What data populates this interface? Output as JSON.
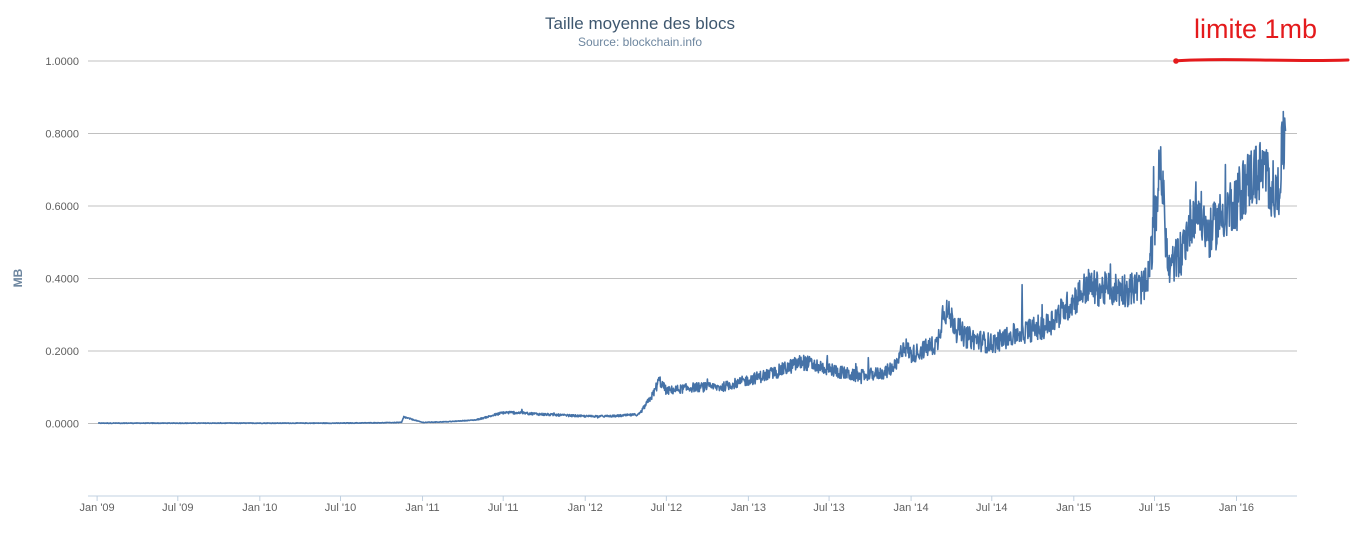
{
  "chart_data": {
    "type": "line",
    "title": "Taille moyenne des blocs",
    "subtitle": "Source: blockchain.info",
    "xlabel": "",
    "ylabel": "MB",
    "ylim": [
      -0.2,
      1.0
    ],
    "y_ticks": [
      "0.0000",
      "0.2000",
      "0.4000",
      "0.6000",
      "0.8000",
      "1.0000"
    ],
    "x_ticks": [
      "Jan '09",
      "Jul '09",
      "Jan '10",
      "Jul '10",
      "Jan '11",
      "Jul '11",
      "Jan '12",
      "Jul '12",
      "Jan '13",
      "Jul '13",
      "Jan '14",
      "Jul '14",
      "Jan '15",
      "Jul '15",
      "Jan '16"
    ],
    "x_range": [
      "2009-01-03",
      "2016-04-30"
    ],
    "grid": true,
    "legend": "none",
    "series": [
      {
        "x": [
          "2009-01-03",
          "2009-07-01",
          "2010-01-01",
          "2010-07-01",
          "2010-10-01",
          "2010-11-15",
          "2010-11-20",
          "2011-01-01",
          "2011-03-01",
          "2011-05-01",
          "2011-06-01",
          "2011-07-01",
          "2011-08-01",
          "2011-10-01",
          "2012-01-01",
          "2012-03-01",
          "2012-05-01",
          "2012-06-01",
          "2012-06-15",
          "2012-07-01",
          "2012-09-01",
          "2012-11-01",
          "2013-01-01",
          "2013-03-01",
          "2013-05-01",
          "2013-07-01",
          "2013-09-01",
          "2013-11-01",
          "2013-12-01",
          "2013-12-15",
          "2014-01-01",
          "2014-03-01",
          "2014-03-15",
          "2014-05-01",
          "2014-07-01",
          "2014-09-01",
          "2014-11-01",
          "2015-01-01",
          "2015-02-01",
          "2015-03-01",
          "2015-05-01",
          "2015-06-15",
          "2015-07-01",
          "2015-07-15",
          "2015-08-01",
          "2015-09-01",
          "2015-10-01",
          "2015-11-01",
          "2015-12-01",
          "2016-01-01",
          "2016-02-01",
          "2016-03-01",
          "2016-04-01",
          "2016-04-20"
        ],
        "values": [
          0.001,
          0.001,
          0.001,
          0.001,
          0.002,
          0.003,
          0.018,
          0.003,
          0.005,
          0.01,
          0.02,
          0.03,
          0.03,
          0.025,
          0.02,
          0.02,
          0.025,
          0.08,
          0.12,
          0.09,
          0.1,
          0.1,
          0.12,
          0.14,
          0.17,
          0.15,
          0.13,
          0.14,
          0.16,
          0.22,
          0.19,
          0.22,
          0.32,
          0.24,
          0.22,
          0.25,
          0.27,
          0.34,
          0.38,
          0.37,
          0.37,
          0.38,
          0.55,
          0.72,
          0.42,
          0.48,
          0.6,
          0.52,
          0.58,
          0.62,
          0.68,
          0.7,
          0.62,
          0.82
        ]
      }
    ],
    "annotation": {
      "text": "limite 1mb",
      "color": "#e41a1c",
      "marks": "1.0000 MB gridline"
    },
    "line_color": "#4572a7"
  }
}
